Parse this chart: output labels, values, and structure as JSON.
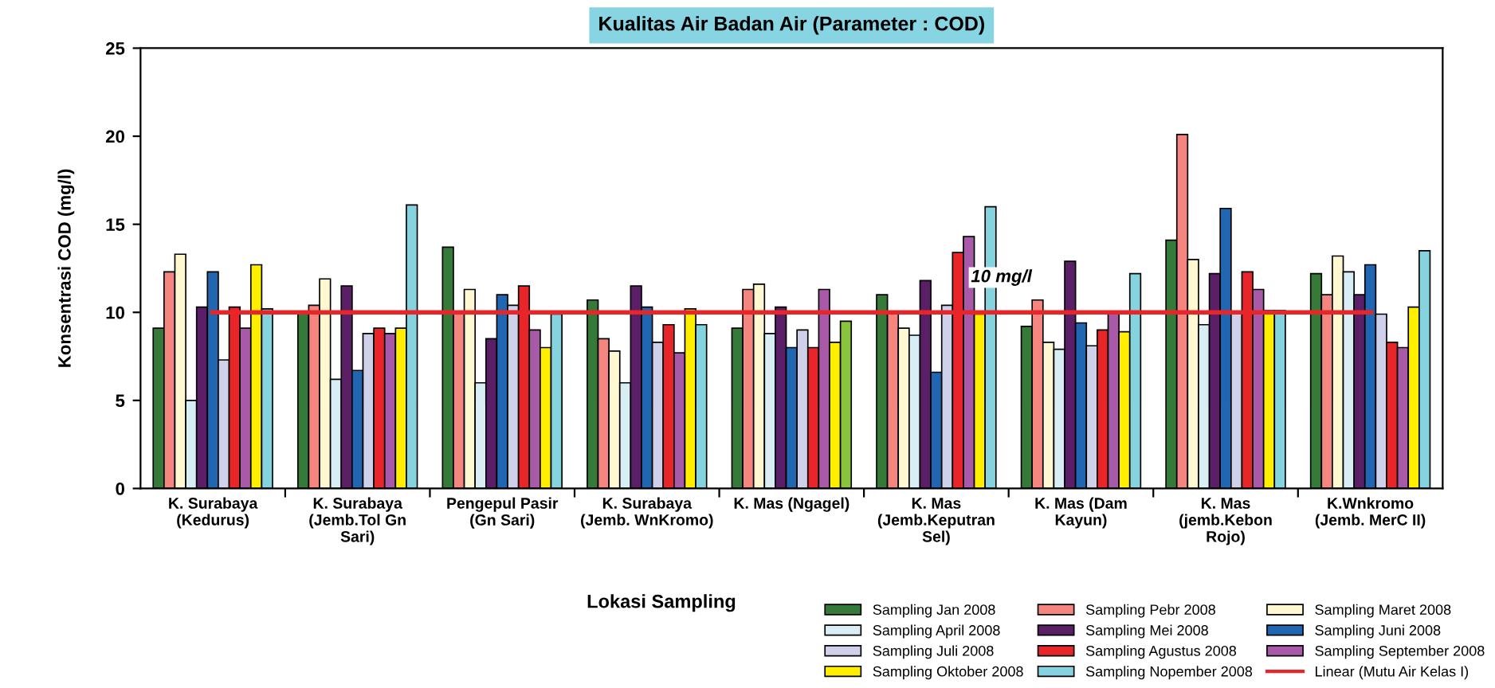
{
  "chart_data": {
    "type": "bar",
    "title": "Kualitas Air Badan Air (Parameter : COD)",
    "xlabel": "Lokasi Sampling",
    "ylabel": "Konsentrasi COD (mg/l)",
    "categories": [
      "K. Surabaya (Kedurus)",
      "K. Surabaya (Jemb.Tol Gn Sari)",
      "Pengepul Pasir (Gn Sari)",
      "K. Surabaya (Jemb. WnKromo)",
      "K. Mas (Ngagel)",
      "K. Mas (Jemb.Keputran Sel)",
      "K. Mas (Dam Kayun)",
      "K. Mas (jemb.Kebon Rojo)",
      "K.Wnkromo (Jemb. MerC II)"
    ],
    "series": [
      {
        "name": "Sampling Jan 2008",
        "color": "#357a38",
        "values": [
          9.1,
          10.0,
          13.7,
          10.7,
          9.1,
          11.0,
          9.2,
          14.1,
          12.2
        ]
      },
      {
        "name": "Sampling Pebr 2008",
        "color": "#f4857f",
        "values": [
          12.3,
          10.4,
          10.0,
          8.5,
          11.3,
          10.0,
          10.7,
          20.1,
          11.0
        ]
      },
      {
        "name": "Sampling Maret 2008",
        "color": "#fff8d0",
        "values": [
          13.3,
          11.9,
          11.3,
          7.8,
          11.6,
          9.1,
          8.3,
          13.0,
          13.2
        ]
      },
      {
        "name": "Sampling April 2008",
        "color": "#d8eef4",
        "values": [
          5.0,
          6.2,
          6.0,
          6.0,
          8.8,
          8.7,
          7.9,
          9.3,
          12.3
        ]
      },
      {
        "name": "Sampling Mei 2008",
        "color": "#5a1f66",
        "values": [
          10.3,
          11.5,
          8.5,
          11.5,
          10.3,
          11.8,
          12.9,
          12.2,
          11.0
        ]
      },
      {
        "name": "Sampling Juni 2008",
        "color": "#2166b0",
        "values": [
          12.3,
          6.7,
          11.0,
          10.3,
          8.0,
          6.6,
          9.4,
          15.9,
          12.7
        ]
      },
      {
        "name": "Sampling Juli 2008",
        "color": "#cfd0ea",
        "values": [
          7.3,
          8.8,
          10.4,
          8.3,
          9.0,
          10.4,
          8.1,
          10.0,
          9.9
        ]
      },
      {
        "name": "Sampling Agustus 2008",
        "color": "#e8262a",
        "values": [
          10.3,
          9.1,
          11.5,
          9.3,
          8.0,
          13.4,
          9.0,
          12.3,
          8.3
        ]
      },
      {
        "name": "Sampling September 2008",
        "color": "#a85aa8",
        "values": [
          9.1,
          8.8,
          9.0,
          7.7,
          11.3,
          14.3,
          10.0,
          11.3,
          8.0
        ]
      },
      {
        "name": "Sampling Oktober 2008",
        "color": "#ffee00",
        "values": [
          12.7,
          9.1,
          8.0,
          10.2,
          8.3,
          9.9,
          8.9,
          10.1,
          10.3
        ]
      },
      {
        "name": "Sampling Nopember 2008",
        "color": "#86d3e0",
        "colors": [
          "#86d3e0",
          "#86d3e0",
          "#86d3e0",
          "#86d3e0",
          "#8ac43f",
          "#86d3e0",
          "#86d3e0",
          "#86d3e0",
          "#86d3e0"
        ],
        "values": [
          10.2,
          16.1,
          9.9,
          9.3,
          9.5,
          16.0,
          12.2,
          10.1,
          13.5
        ]
      }
    ],
    "ref_lines": [
      {
        "axis": "y",
        "value": 10,
        "label": "Linear (Mutu Air Kelas I)",
        "color": "#e8262a",
        "line_style": "solid"
      }
    ],
    "annotations": [
      {
        "text": "10 mg/l",
        "x": "K. Mas (Jemb.Keputran Sel)",
        "y": 10
      }
    ],
    "ylim": [
      0,
      25
    ],
    "yticks": [
      0,
      5,
      10,
      15,
      20,
      25
    ],
    "grid": false,
    "legend": "bottom right"
  }
}
